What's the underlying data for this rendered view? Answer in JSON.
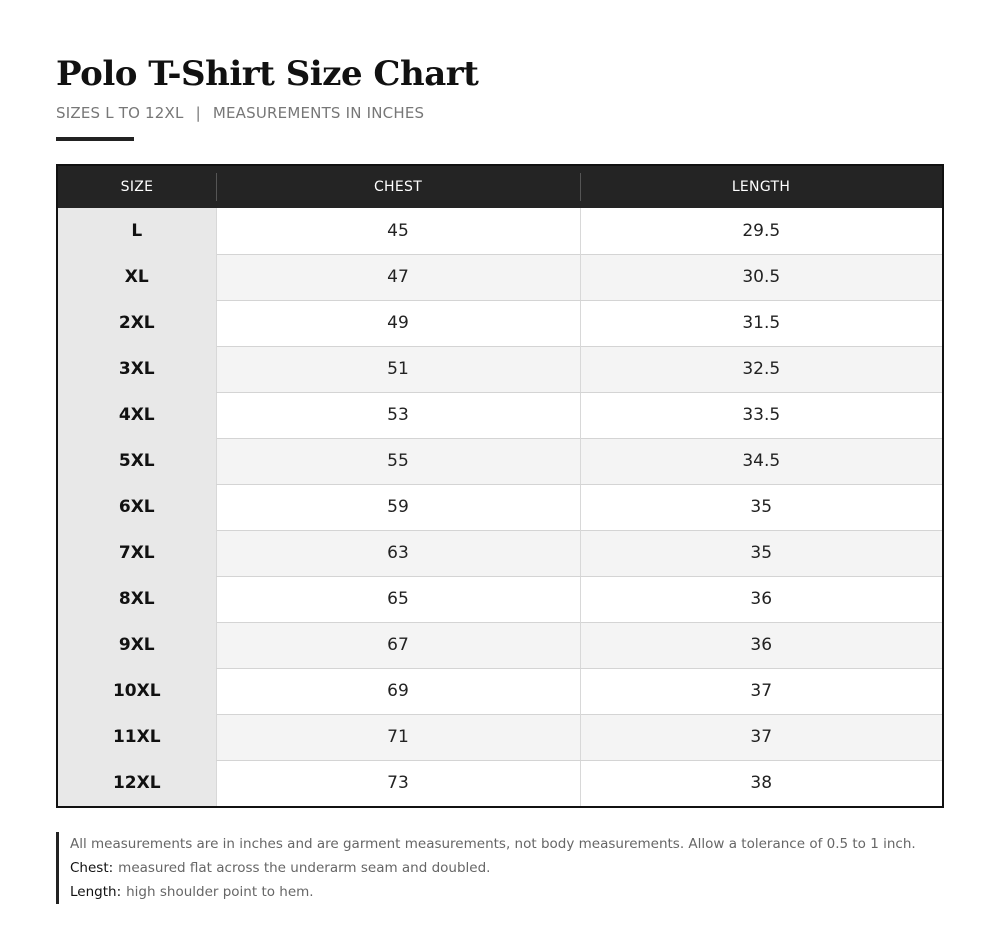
{
  "header": {
    "title": "Polo T-Shirt Size Chart",
    "subtitle_sizes": "SIZES L TO 12XL",
    "subtitle_separator": "|",
    "subtitle_units": "MEASUREMENTS IN INCHES"
  },
  "table": {
    "columns": [
      "SIZE",
      "CHEST",
      "LENGTH"
    ],
    "rows": [
      {
        "size": "L",
        "chest": "45",
        "length": "29.5"
      },
      {
        "size": "XL",
        "chest": "47",
        "length": "30.5"
      },
      {
        "size": "2XL",
        "chest": "49",
        "length": "31.5"
      },
      {
        "size": "3XL",
        "chest": "51",
        "length": "32.5"
      },
      {
        "size": "4XL",
        "chest": "53",
        "length": "33.5"
      },
      {
        "size": "5XL",
        "chest": "55",
        "length": "34.5"
      },
      {
        "size": "6XL",
        "chest": "59",
        "length": "35"
      },
      {
        "size": "7XL",
        "chest": "63",
        "length": "35"
      },
      {
        "size": "8XL",
        "chest": "65",
        "length": "36"
      },
      {
        "size": "9XL",
        "chest": "67",
        "length": "36"
      },
      {
        "size": "10XL",
        "chest": "69",
        "length": "37"
      },
      {
        "size": "11XL",
        "chest": "71",
        "length": "37"
      },
      {
        "size": "12XL",
        "chest": "73",
        "length": "38"
      }
    ]
  },
  "notes": {
    "general": "All measurements are in inches and are garment measurements, not body measurements. Allow a tolerance of 0.5 to 1 inch.",
    "chest_label": "Chest:",
    "chest_text": "measured flat across the underarm seam and doubled.",
    "length_label": "Length:",
    "length_text": "high shoulder point to hem."
  },
  "colors": {
    "header_bg": "#242424",
    "size_column_bg": "#e8e8e8",
    "stripe_bg": "#f4f4f4",
    "border": "#111111"
  }
}
